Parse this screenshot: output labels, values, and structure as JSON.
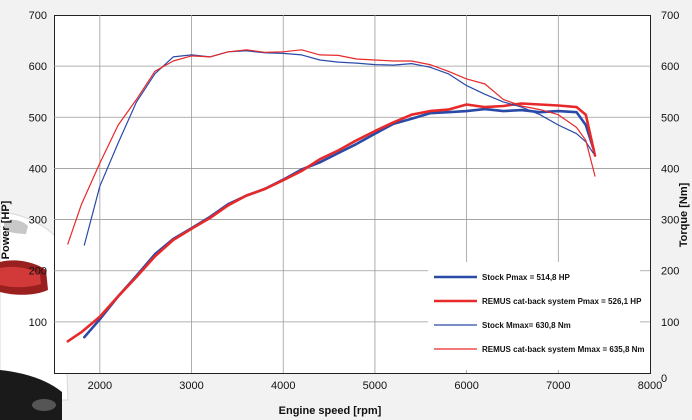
{
  "chart_data": {
    "type": "line",
    "xlabel": "Engine speed [rpm]",
    "ylabel_left": "Power [HP]",
    "ylabel_right": "Torque [Nm]",
    "xlim": [
      1500,
      8000
    ],
    "ylim": [
      0,
      700
    ],
    "x_ticks": [
      2000,
      3000,
      4000,
      5000,
      6000,
      7000,
      8000
    ],
    "y_ticks": [
      0,
      100,
      200,
      300,
      400,
      500,
      600,
      700
    ],
    "grid": true,
    "legend_position": "bottom-right",
    "series": [
      {
        "name": "Stock Pmax = 514,8 HP",
        "color": "#2a4aa8",
        "width": 2.6,
        "points": [
          [
            1830,
            70
          ],
          [
            2000,
            105
          ],
          [
            2200,
            150
          ],
          [
            2400,
            190
          ],
          [
            2600,
            232
          ],
          [
            2800,
            262
          ],
          [
            3000,
            283
          ],
          [
            3200,
            305
          ],
          [
            3400,
            330
          ],
          [
            3600,
            347
          ],
          [
            3800,
            360
          ],
          [
            4000,
            378
          ],
          [
            4200,
            398
          ],
          [
            4400,
            412
          ],
          [
            4600,
            430
          ],
          [
            4800,
            448
          ],
          [
            5000,
            468
          ],
          [
            5200,
            487
          ],
          [
            5400,
            497
          ],
          [
            5600,
            508
          ],
          [
            5800,
            510
          ],
          [
            6000,
            512
          ],
          [
            6200,
            516
          ],
          [
            6400,
            512
          ],
          [
            6600,
            514
          ],
          [
            6800,
            510
          ],
          [
            7000,
            512
          ],
          [
            7200,
            510
          ],
          [
            7300,
            485
          ],
          [
            7380,
            440
          ]
        ]
      },
      {
        "name": "REMUS cat-back system Pmax =  526,1 HP",
        "color": "#e8292a",
        "width": 2.6,
        "points": [
          [
            1650,
            62
          ],
          [
            1800,
            80
          ],
          [
            2000,
            110
          ],
          [
            2200,
            150
          ],
          [
            2400,
            188
          ],
          [
            2600,
            228
          ],
          [
            2800,
            260
          ],
          [
            3000,
            282
          ],
          [
            3200,
            303
          ],
          [
            3400,
            328
          ],
          [
            3600,
            347
          ],
          [
            3800,
            360
          ],
          [
            4000,
            377
          ],
          [
            4200,
            395
          ],
          [
            4400,
            418
          ],
          [
            4600,
            435
          ],
          [
            4800,
            455
          ],
          [
            5000,
            473
          ],
          [
            5200,
            490
          ],
          [
            5400,
            505
          ],
          [
            5600,
            512
          ],
          [
            5800,
            515
          ],
          [
            6000,
            525
          ],
          [
            6200,
            520
          ],
          [
            6400,
            522
          ],
          [
            6600,
            527
          ],
          [
            6800,
            525
          ],
          [
            7000,
            523
          ],
          [
            7200,
            520
          ],
          [
            7300,
            505
          ],
          [
            7400,
            425
          ]
        ]
      },
      {
        "name": "Stock Mmax= 630,8 Nm",
        "color": "#2a4aa8",
        "width": 1.2,
        "points": [
          [
            1830,
            250
          ],
          [
            2000,
            365
          ],
          [
            2200,
            450
          ],
          [
            2400,
            530
          ],
          [
            2600,
            585
          ],
          [
            2800,
            618
          ],
          [
            3000,
            622
          ],
          [
            3200,
            618
          ],
          [
            3400,
            628
          ],
          [
            3600,
            630
          ],
          [
            3800,
            626
          ],
          [
            4000,
            625
          ],
          [
            4200,
            622
          ],
          [
            4400,
            612
          ],
          [
            4600,
            608
          ],
          [
            4800,
            606
          ],
          [
            5000,
            603
          ],
          [
            5200,
            602
          ],
          [
            5400,
            605
          ],
          [
            5600,
            598
          ],
          [
            5800,
            585
          ],
          [
            6000,
            562
          ],
          [
            6200,
            545
          ],
          [
            6400,
            530
          ],
          [
            6600,
            520
          ],
          [
            6800,
            505
          ],
          [
            7000,
            485
          ],
          [
            7200,
            468
          ],
          [
            7300,
            452
          ],
          [
            7380,
            430
          ]
        ]
      },
      {
        "name": "REMUS cat-back system Mmax = 635,8 Nm",
        "color": "#e8292a",
        "width": 1.2,
        "points": [
          [
            1650,
            252
          ],
          [
            1800,
            330
          ],
          [
            2000,
            410
          ],
          [
            2200,
            485
          ],
          [
            2400,
            535
          ],
          [
            2600,
            590
          ],
          [
            2800,
            610
          ],
          [
            3000,
            620
          ],
          [
            3200,
            618
          ],
          [
            3400,
            628
          ],
          [
            3600,
            632
          ],
          [
            3800,
            627
          ],
          [
            4000,
            628
          ],
          [
            4200,
            632
          ],
          [
            4400,
            622
          ],
          [
            4600,
            621
          ],
          [
            4800,
            614
          ],
          [
            5000,
            612
          ],
          [
            5200,
            610
          ],
          [
            5400,
            610
          ],
          [
            5600,
            603
          ],
          [
            5800,
            590
          ],
          [
            6000,
            575
          ],
          [
            6200,
            565
          ],
          [
            6400,
            535
          ],
          [
            6600,
            522
          ],
          [
            6800,
            515
          ],
          [
            7000,
            505
          ],
          [
            7200,
            480
          ],
          [
            7300,
            455
          ],
          [
            7400,
            385
          ]
        ]
      }
    ]
  }
}
